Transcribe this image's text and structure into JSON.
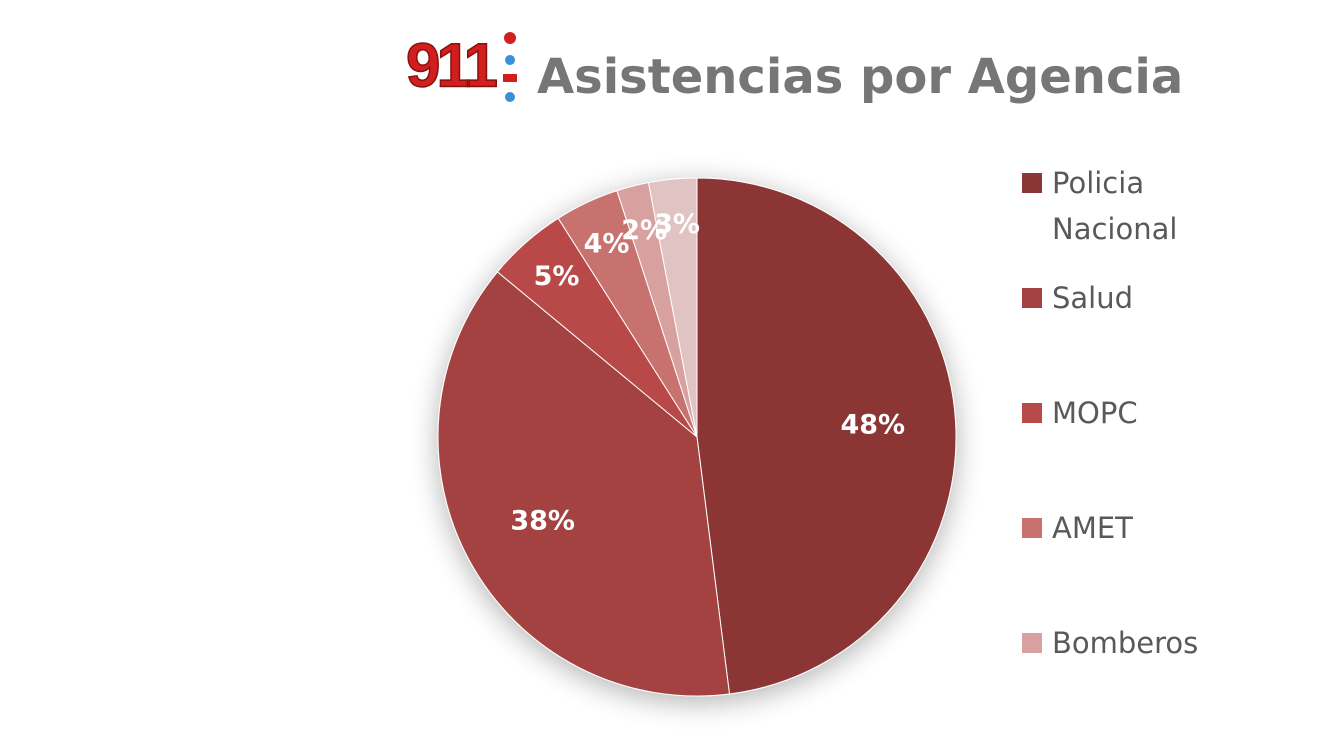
{
  "logo": "911",
  "chart_data": {
    "type": "pie",
    "title": "Asistencias por Agencia",
    "categories": [
      "Policia Nacional",
      "Salud",
      "MOPC",
      "AMET",
      "Bomberos",
      null
    ],
    "values": [
      48,
      38,
      5,
      4,
      2,
      3
    ],
    "value_labels": [
      "48%",
      "38%",
      "5%",
      "4%",
      "2%",
      "3%"
    ],
    "colors": [
      "#8b3535",
      "#a44242",
      "#b94a4a",
      "#c87270",
      "#d9a0a0",
      "#e0c4c4"
    ],
    "legend": "right"
  }
}
